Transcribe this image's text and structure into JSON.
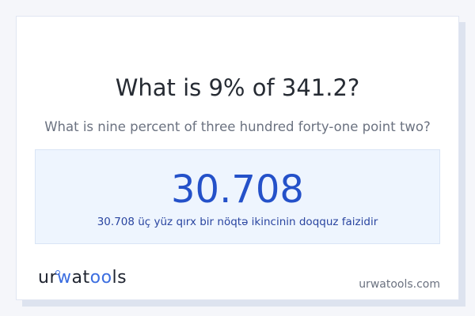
{
  "question": {
    "title": "What is 9% of 341.2?",
    "subtitle": "What is nine percent of three hundred forty-one point two?"
  },
  "result": {
    "value": "30.708",
    "words": "30.708 üç yüz qırx bir nöqtə ikincinin doqquz faizidir"
  },
  "footer": {
    "logo": "urwatools",
    "domain": "urwatools.com"
  },
  "colors": {
    "accent": "#2451c9",
    "result_bg": "#eef5fe",
    "page_bg": "#f5f6fa"
  }
}
